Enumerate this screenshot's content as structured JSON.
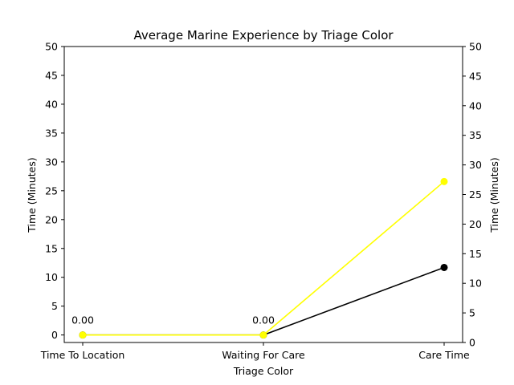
{
  "chart_data": {
    "type": "line",
    "title": "Average Marine Experience by Triage Color",
    "xlabel": "Triage Color",
    "ylabel": "Time (Minutes)",
    "ylabel_right": "Time (Minutes)",
    "categories": [
      "Time To Location",
      "Waiting For Care",
      "Care Time"
    ],
    "ylim": [
      -1.3,
      50
    ],
    "yticks": [
      0,
      5,
      10,
      15,
      20,
      25,
      30,
      35,
      40,
      45,
      50
    ],
    "ylim_right": [
      0,
      50
    ],
    "yticks_right": [
      0,
      5,
      10,
      15,
      20,
      25,
      30,
      35,
      40,
      45,
      50
    ],
    "grid": false,
    "series": [
      {
        "color": "#000000",
        "values": [
          0,
          0,
          11.7
        ]
      },
      {
        "color": "#ffff00",
        "values": [
          0,
          0,
          26.6
        ]
      }
    ],
    "annotations": [
      {
        "category_index": 0,
        "value": 0,
        "text": "0.00"
      },
      {
        "category_index": 1,
        "value": 0,
        "text": "0.00"
      }
    ]
  }
}
